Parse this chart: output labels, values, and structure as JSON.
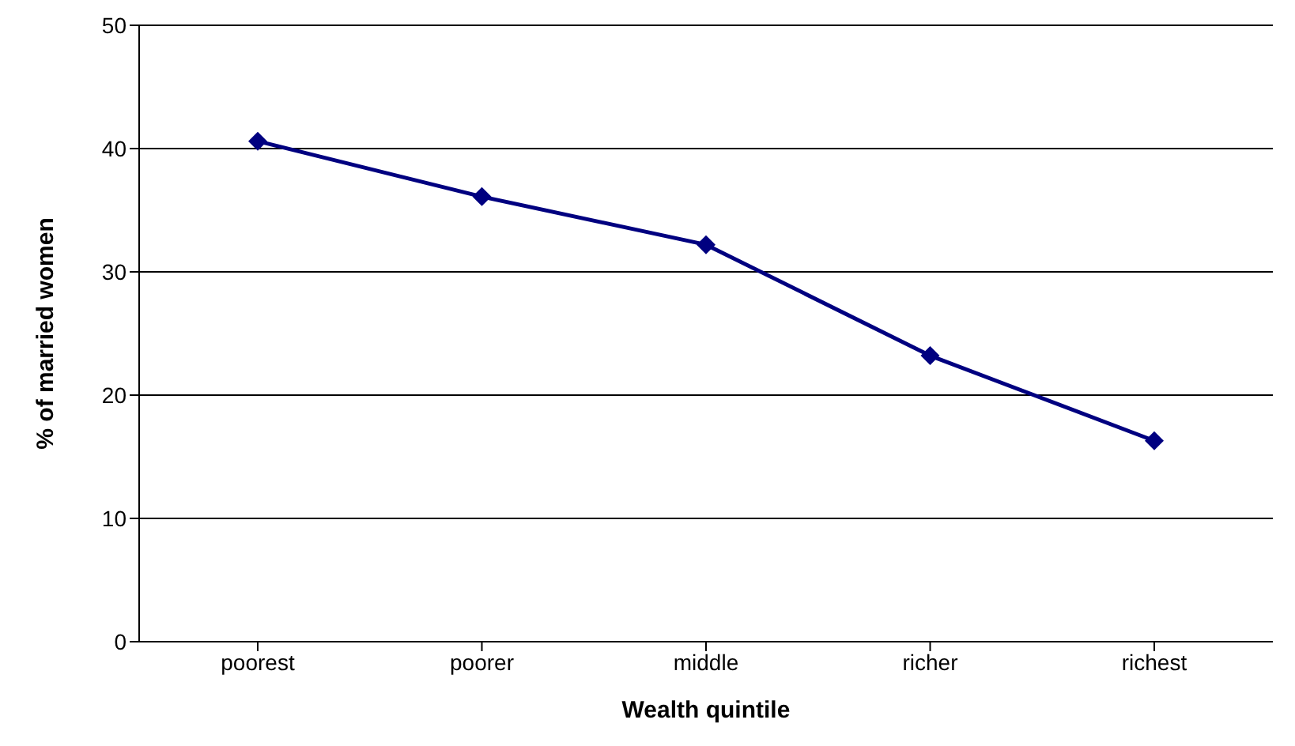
{
  "chart_data": {
    "type": "line",
    "xlabel": "Wealth quintile",
    "ylabel": "% of married women",
    "categories": [
      "poorest",
      "poorer",
      "middle",
      "richer",
      "richest"
    ],
    "series": [
      {
        "color": "#000080",
        "values": [
          40.6,
          36.1,
          32.2,
          23.2,
          16.3
        ]
      }
    ],
    "ylim": [
      0,
      50
    ],
    "yticks": [
      0,
      10,
      20,
      30,
      40,
      50
    ],
    "grid": "y",
    "marker": "diamond",
    "line_style": "solid"
  }
}
